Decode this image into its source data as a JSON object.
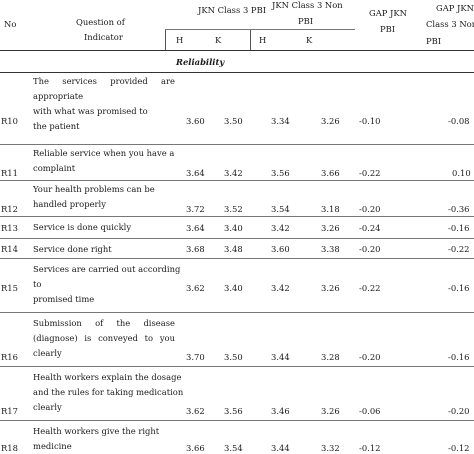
{
  "header": {
    "no": "No",
    "question_line1": "Question of",
    "question_line2": "Indicator",
    "pbi_group": "JKN Class 3 PBI",
    "nonpbi_line1": "JKN  Class  3  Non",
    "nonpbi_line2": "PBI",
    "gap1_line1": "GAP    JKN",
    "gap1_line2": "PBI",
    "gap2_line1": "GAP JKN",
    "gap2_line2": "Class  3  Non",
    "gap2_line3": "PBI",
    "h1": "H",
    "k1": "K",
    "h2": "H",
    "k2": "K"
  },
  "section": "Reliability",
  "rows": [
    {
      "code": "R10",
      "question_lines": [
        "The    services    provided    are",
        "appropriate",
        "with what was promised to",
        "the patient"
      ],
      "h_pbi": "3.60",
      "k_pbi": "3.50",
      "h_nonpbi": "3.34",
      "k_nonpbi": "3.26",
      "gap_pbi": "-0.10",
      "gap_nonpbi": "-0.08"
    },
    {
      "code": "R11",
      "question_lines": [
        "Reliable service when you have a",
        "complaint"
      ],
      "h_pbi": "3.64",
      "k_pbi": "3.42",
      "h_nonpbi": "3.56",
      "k_nonpbi": "3.66",
      "gap_pbi": "-0.22",
      "gap_nonpbi": "0.10"
    },
    {
      "code": "R12",
      "question_lines": [
        "Your health problems can be",
        "handled properly"
      ],
      "h_pbi": "3.72",
      "k_pbi": "3.52",
      "h_nonpbi": "3.54",
      "k_nonpbi": "3.18",
      "gap_pbi": "-0.20",
      "gap_nonpbi": "-0.36"
    },
    {
      "code": "R13",
      "question_lines": [
        "Service is done quickly"
      ],
      "h_pbi": "3.64",
      "k_pbi": "3.40",
      "h_nonpbi": "3.42",
      "k_nonpbi": "3.26",
      "gap_pbi": "-0.24",
      "gap_nonpbi": "-0.16"
    },
    {
      "code": "R14",
      "question_lines": [
        "Service done right"
      ],
      "h_pbi": "3.68",
      "k_pbi": "3.48",
      "h_nonpbi": "3.60",
      "k_nonpbi": "3.38",
      "gap_pbi": "-0.20",
      "gap_nonpbi": "-0.22"
    },
    {
      "code": "R15",
      "question_lines": [
        "Services are carried out according",
        "to",
        "promised time"
      ],
      "h_pbi": "3.62",
      "k_pbi": "3.40",
      "h_nonpbi": "3.42",
      "k_nonpbi": "3.26",
      "gap_pbi": "-0.22",
      "gap_nonpbi": "-0.16"
    },
    {
      "code": "R16",
      "question_lines": [
        "Submission    of    the    disease",
        "(diagnose)  is  conveyed  to  you",
        "clearly"
      ],
      "h_pbi": "3.70",
      "k_pbi": "3.50",
      "h_nonpbi": "3.44",
      "k_nonpbi": "3.28",
      "gap_pbi": "-0.20",
      "gap_nonpbi": "-0.16"
    },
    {
      "code": "R17",
      "question_lines": [
        "Health workers explain the dosage",
        "and the rules for taking medication",
        "clearly"
      ],
      "h_pbi": "3.62",
      "k_pbi": "3.56",
      "h_nonpbi": "3.46",
      "k_nonpbi": "3.26",
      "gap_pbi": "-0.06",
      "gap_nonpbi": "-0.20"
    },
    {
      "code": "R18",
      "question_lines": [
        "Health workers give the right",
        "medicine"
      ],
      "h_pbi": "3.66",
      "k_pbi": "3.54",
      "h_nonpbi": "3.44",
      "k_nonpbi": "3.32",
      "gap_pbi": "-0.12",
      "gap_nonpbi": "-0.12"
    }
  ]
}
